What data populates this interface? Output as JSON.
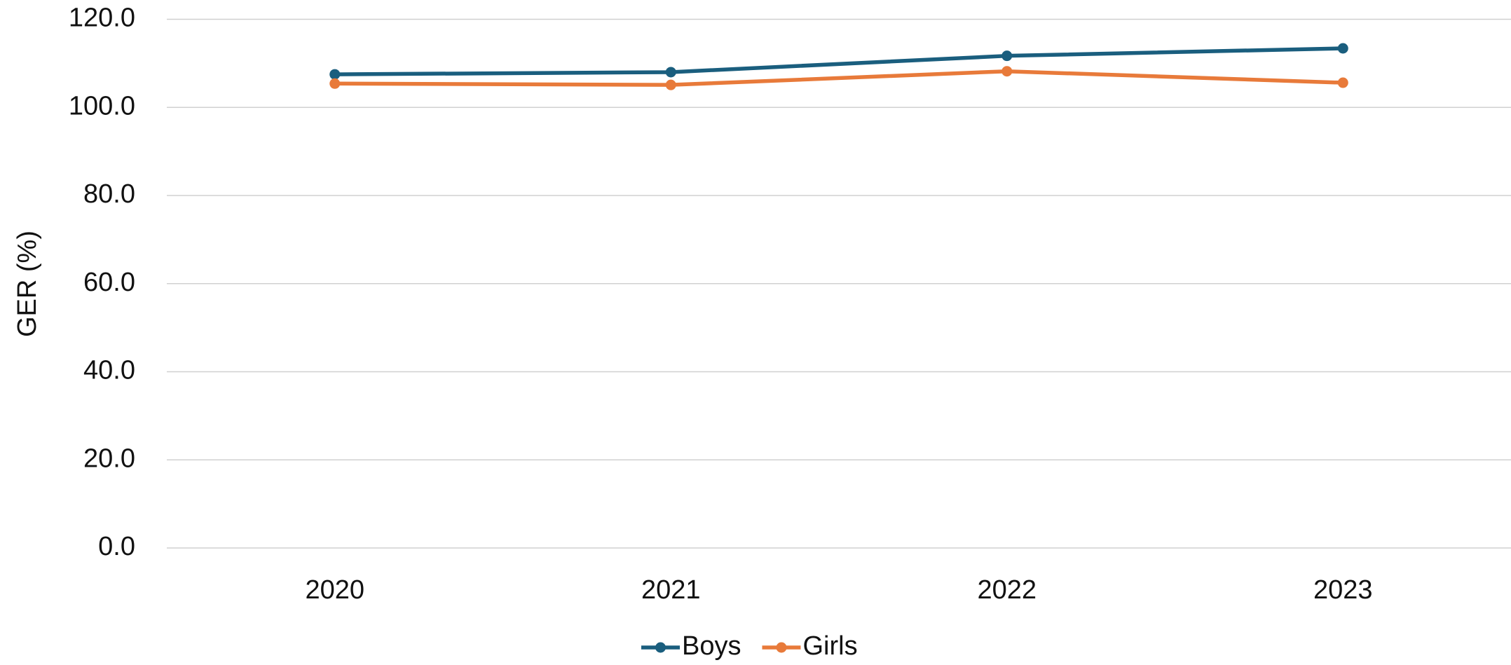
{
  "chart_data": {
    "type": "line",
    "y_label": "GER (%)",
    "categories": [
      "2020",
      "2021",
      "2022",
      "2023"
    ],
    "series": [
      {
        "name": "Boys",
        "color": "#1a5e7e",
        "values": [
          107.5,
          108.0,
          111.7,
          113.4
        ]
      },
      {
        "name": "Girls",
        "color": "#e87a3a",
        "values": [
          105.4,
          105.1,
          108.2,
          105.6
        ]
      }
    ],
    "ylim": [
      0,
      120
    ],
    "yticks": [
      {
        "value": 0,
        "label": "0.0"
      },
      {
        "value": 20,
        "label": "20.0"
      },
      {
        "value": 40,
        "label": "40.0"
      },
      {
        "value": 60,
        "label": "60.0"
      },
      {
        "value": 80,
        "label": "80.0"
      },
      {
        "value": 100,
        "label": "100.0"
      },
      {
        "value": 120,
        "label": "120.0"
      }
    ],
    "grid": true,
    "legend": "bottom"
  }
}
